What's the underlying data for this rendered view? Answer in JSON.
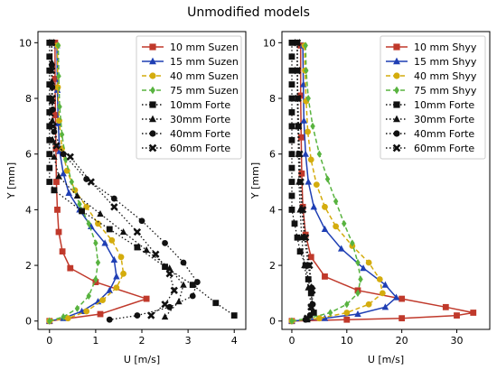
{
  "figure": {
    "suptitle": "Unmodified models"
  },
  "chart_data": [
    {
      "type": "line",
      "xlabel": "U [m/s]",
      "ylabel": "Y [mm]",
      "xlim": [
        -0.25,
        4.25
      ],
      "ylim": [
        -0.3,
        10.4
      ],
      "xticks": [
        0,
        1,
        2,
        3,
        4
      ],
      "yticks": [
        0,
        2,
        4,
        6,
        8,
        10
      ],
      "legend_position": "upper right",
      "series": [
        {
          "name": "10 mm Suzen",
          "color": "#c0392b",
          "marker": "square",
          "linestyle": "solid",
          "x": [
            0,
            1.1,
            2.1,
            1.0,
            0.45,
            0.28,
            0.2,
            0.17,
            0.15,
            0.14,
            0.13,
            0.12,
            0.12
          ],
          "y": [
            0,
            0.25,
            0.8,
            1.4,
            1.9,
            2.5,
            3.2,
            4.0,
            5.0,
            6.2,
            7.4,
            8.7,
            10.0
          ]
        },
        {
          "name": "15 mm Suzen",
          "color": "#1f3fb4",
          "marker": "triangle",
          "linestyle": "solid",
          "x": [
            0,
            0.3,
            0.7,
            1.05,
            1.3,
            1.45,
            1.4,
            1.2,
            0.9,
            0.65,
            0.42,
            0.3,
            0.22,
            0.19,
            0.17,
            0.16
          ],
          "y": [
            0,
            0.1,
            0.35,
            0.7,
            1.1,
            1.6,
            2.2,
            2.8,
            3.4,
            4.0,
            4.6,
            5.3,
            6.1,
            7.1,
            8.3,
            9.9
          ]
        },
        {
          "name": "40 mm Suzen",
          "color": "#d4ac0d",
          "marker": "circle",
          "linestyle": "dashed",
          "x": [
            0,
            0.4,
            0.8,
            1.15,
            1.45,
            1.6,
            1.55,
            1.35,
            1.05,
            0.8,
            0.55,
            0.38,
            0.27,
            0.21,
            0.18,
            0.17
          ],
          "y": [
            0,
            0.1,
            0.35,
            0.75,
            1.2,
            1.7,
            2.3,
            2.9,
            3.5,
            4.1,
            4.7,
            5.4,
            6.2,
            7.2,
            8.4,
            9.9
          ]
        },
        {
          "name": "75 mm Suzen",
          "color": "#58b33f",
          "marker": "diamond",
          "linestyle": "dashed",
          "x": [
            0,
            0.3,
            0.6,
            0.85,
            1.0,
            1.05,
            1.0,
            0.85,
            0.65,
            0.48,
            0.35,
            0.27,
            0.22,
            0.2,
            0.19
          ],
          "y": [
            0,
            0.15,
            0.45,
            0.9,
            1.5,
            2.1,
            2.8,
            3.5,
            4.2,
            5.0,
            5.8,
            6.7,
            7.7,
            8.8,
            9.9
          ]
        },
        {
          "name": "10mm Forte",
          "color": "#111111",
          "marker": "square",
          "linestyle": "dotted",
          "x": [
            0,
            0,
            0,
            0,
            0,
            0,
            0,
            0,
            0,
            0,
            0,
            0.1,
            0.7,
            1.3,
            1.9,
            2.5,
            3.1,
            3.6,
            4.0
          ],
          "y": [
            10,
            9.5,
            9.0,
            8.5,
            8.0,
            7.5,
            7.0,
            6.5,
            6.0,
            5.5,
            5.0,
            4.7,
            3.95,
            3.3,
            2.65,
            1.95,
            1.3,
            0.65,
            0.2
          ]
        },
        {
          "name": "30mm Forte",
          "color": "#111111",
          "marker": "triangle",
          "linestyle": "dotted",
          "x": [
            0.05,
            0.05,
            0.05,
            0.05,
            0.06,
            0.07,
            0.1,
            0.2,
            0.6,
            1.1,
            1.6,
            2.1,
            2.6,
            2.9,
            2.8,
            2.5
          ],
          "y": [
            10,
            9.3,
            8.6,
            7.9,
            7.2,
            6.5,
            5.9,
            5.2,
            4.5,
            3.85,
            3.2,
            2.55,
            1.9,
            1.3,
            0.7,
            0.15
          ]
        },
        {
          "name": "40mm Forte",
          "color": "#111111",
          "marker": "circle",
          "linestyle": "dotted",
          "x": [
            0.05,
            0.05,
            0.06,
            0.07,
            0.1,
            0.3,
            0.8,
            1.4,
            2.0,
            2.5,
            2.9,
            3.2,
            3.1,
            2.6,
            1.9,
            1.3
          ],
          "y": [
            10,
            9.2,
            8.4,
            7.6,
            6.8,
            6.0,
            5.1,
            4.4,
            3.6,
            2.8,
            2.1,
            1.4,
            0.9,
            0.5,
            0.2,
            0.05
          ]
        },
        {
          "name": "60mm Forte",
          "color": "#111111",
          "marker": "x",
          "linestyle": "dotted",
          "x": [
            0.05,
            0.05,
            0.06,
            0.08,
            0.15,
            0.45,
            0.9,
            1.4,
            1.9,
            2.3,
            2.6,
            2.7,
            2.5,
            2.2
          ],
          "y": [
            10,
            9.0,
            8.0,
            7.0,
            6.3,
            5.9,
            5.0,
            4.1,
            3.2,
            2.4,
            1.7,
            1.1,
            0.6,
            0.2
          ]
        }
      ]
    },
    {
      "type": "line",
      "xlabel": "U [m/s]",
      "ylabel": "Y [mm]",
      "xlim": [
        -1.8,
        36
      ],
      "ylim": [
        -0.3,
        10.4
      ],
      "xticks": [
        0,
        10,
        20,
        30
      ],
      "yticks": [
        0,
        2,
        4,
        6,
        8,
        10
      ],
      "legend_position": "upper right",
      "series": [
        {
          "name": "10 mm Shyy",
          "color": "#c0392b",
          "marker": "square",
          "linestyle": "solid",
          "x": [
            0,
            10,
            20,
            30,
            33,
            28,
            20,
            12,
            6,
            3.5,
            2.5,
            2.0,
            1.8,
            1.7,
            1.6,
            1.6
          ],
          "y": [
            0,
            0.05,
            0.1,
            0.2,
            0.3,
            0.5,
            0.8,
            1.1,
            1.6,
            2.3,
            3.1,
            4.1,
            5.3,
            6.6,
            8.1,
            9.9
          ]
        },
        {
          "name": "15 mm Shyy",
          "color": "#1f3fb4",
          "marker": "triangle",
          "linestyle": "solid",
          "x": [
            0,
            6,
            12,
            17,
            19,
            17,
            13,
            9,
            6,
            4,
            3.0,
            2.5,
            2.2,
            2.1,
            2.0
          ],
          "y": [
            0,
            0.1,
            0.25,
            0.5,
            0.85,
            1.3,
            1.9,
            2.6,
            3.3,
            4.1,
            5.0,
            6.0,
            7.2,
            8.5,
            9.9
          ]
        },
        {
          "name": "40 mm Shyy",
          "color": "#d4ac0d",
          "marker": "circle",
          "linestyle": "dashed",
          "x": [
            0,
            5,
            10,
            14,
            16.5,
            16,
            14,
            11,
            8,
            6,
            4.5,
            3.5,
            2.9,
            2.6,
            2.4,
            2.3
          ],
          "y": [
            0,
            0.1,
            0.3,
            0.6,
            1.0,
            1.5,
            2.1,
            2.7,
            3.4,
            4.1,
            4.9,
            5.8,
            6.8,
            7.9,
            9.0,
            9.9
          ]
        },
        {
          "name": "75 mm Shyy",
          "color": "#58b33f",
          "marker": "diamond",
          "linestyle": "dashed",
          "x": [
            0,
            3,
            7,
            10,
            12,
            12.5,
            12,
            11,
            9.5,
            8,
            6.5,
            5,
            3.8,
            3.0,
            2.6,
            2.5
          ],
          "y": [
            0,
            0.1,
            0.3,
            0.6,
            1.0,
            1.5,
            2.1,
            2.8,
            3.5,
            4.3,
            5.1,
            6.0,
            7.0,
            8.0,
            9.0,
            9.9
          ]
        },
        {
          "name": "10mm Forte",
          "color": "#111111",
          "marker": "square",
          "linestyle": "dotted",
          "x": [
            0,
            0,
            0,
            0,
            0,
            0,
            0,
            0,
            0,
            0,
            0,
            0,
            0,
            0.5,
            1.0,
            1.5,
            2.5,
            3.0,
            3.5,
            4.0
          ],
          "y": [
            10,
            9.5,
            9.0,
            8.5,
            8.0,
            7.5,
            7.0,
            6.5,
            6.0,
            5.5,
            5.0,
            4.5,
            4.0,
            3.5,
            3.0,
            2.5,
            2.0,
            1.5,
            1.0,
            0.3
          ]
        },
        {
          "name": "30mm Forte",
          "color": "#111111",
          "marker": "triangle",
          "linestyle": "dotted",
          "x": [
            1.0,
            1.0,
            1.0,
            1.1,
            1.2,
            1.3,
            1.5,
            1.8,
            2.3,
            3.0,
            3.5,
            3.3,
            2.8
          ],
          "y": [
            10,
            9.0,
            8.0,
            7.0,
            6.0,
            5.0,
            4.0,
            3.0,
            2.0,
            1.2,
            0.6,
            0.2,
            0.05
          ]
        },
        {
          "name": "40mm Forte",
          "color": "#111111",
          "marker": "circle",
          "linestyle": "dotted",
          "x": [
            1.0,
            1.0,
            1.1,
            1.2,
            1.3,
            1.5,
            1.8,
            2.3,
            3.0,
            3.6,
            3.8,
            3.3,
            2.5
          ],
          "y": [
            10,
            9.0,
            8.0,
            7.0,
            6.0,
            5.0,
            4.0,
            3.0,
            2.0,
            1.2,
            0.6,
            0.2,
            0.05
          ]
        },
        {
          "name": "60mm Forte",
          "color": "#111111",
          "marker": "x",
          "linestyle": "dotted",
          "x": [
            1.0,
            1.0,
            1.1,
            1.2,
            1.4,
            1.6,
            2.0,
            2.5,
            3.2,
            3.7,
            3.5,
            2.8
          ],
          "y": [
            10,
            9.0,
            8.0,
            7.0,
            6.0,
            5.0,
            4.0,
            3.0,
            2.0,
            1.1,
            0.5,
            0.1
          ]
        }
      ]
    }
  ]
}
